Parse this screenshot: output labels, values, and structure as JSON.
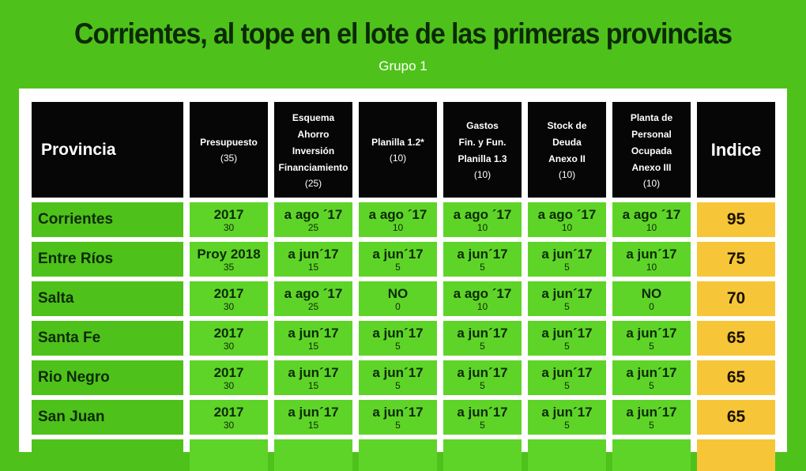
{
  "title": "Corrientes, al tope en el lote de las primeras provincias",
  "subtitle": "Grupo 1",
  "columns": [
    {
      "label": "Provincia",
      "weight": ""
    },
    {
      "label": "Presupuesto",
      "weight": "(35)"
    },
    {
      "label": "Esquema\nAhorro\nInversión\nFinanciamiento",
      "weight": "(25)"
    },
    {
      "label": "Planilla 1.2*",
      "weight": "(10)"
    },
    {
      "label": "Gastos\nFin. y Fun.\nPlanilla 1.3",
      "weight": "(10)"
    },
    {
      "label": "Stock de\nDeuda\nAnexo II",
      "weight": "(10)"
    },
    {
      "label": "Planta de\nPersonal\nOcupada\nAnexo III",
      "weight": "(10)"
    },
    {
      "label": "Indice",
      "weight": ""
    }
  ],
  "rows": [
    {
      "provincia": "Corrientes",
      "cells": [
        {
          "v": "2017",
          "n": "30"
        },
        {
          "v": "a ago ´17",
          "n": "25"
        },
        {
          "v": "a ago ´17",
          "n": "10"
        },
        {
          "v": "a ago ´17",
          "n": "10"
        },
        {
          "v": "a ago ´17",
          "n": "10"
        },
        {
          "v": "a ago ´17",
          "n": "10"
        }
      ],
      "indice": "95"
    },
    {
      "provincia": "Entre Ríos",
      "cells": [
        {
          "v": "Proy 2018",
          "n": "35"
        },
        {
          "v": "a jun´17",
          "n": "15"
        },
        {
          "v": "a jun´17",
          "n": "5"
        },
        {
          "v": "a jun´17",
          "n": "5"
        },
        {
          "v": "a jun´17",
          "n": "5"
        },
        {
          "v": "a jun´17",
          "n": "10"
        }
      ],
      "indice": "75"
    },
    {
      "provincia": "Salta",
      "cells": [
        {
          "v": "2017",
          "n": "30"
        },
        {
          "v": "a ago ´17",
          "n": "25"
        },
        {
          "v": "NO",
          "n": "0"
        },
        {
          "v": "a ago ´17",
          "n": "10"
        },
        {
          "v": "a jun´17",
          "n": "5"
        },
        {
          "v": "NO",
          "n": "0"
        }
      ],
      "indice": "70"
    },
    {
      "provincia": "Santa Fe",
      "cells": [
        {
          "v": "2017",
          "n": "30"
        },
        {
          "v": "a jun´17",
          "n": "15"
        },
        {
          "v": "a jun´17",
          "n": "5"
        },
        {
          "v": "a jun´17",
          "n": "5"
        },
        {
          "v": "a jun´17",
          "n": "5"
        },
        {
          "v": "a jun´17",
          "n": "5"
        }
      ],
      "indice": "65"
    },
    {
      "provincia": "Rio Negro",
      "cells": [
        {
          "v": "2017",
          "n": "30"
        },
        {
          "v": "a jun´17",
          "n": "15"
        },
        {
          "v": "a jun´17",
          "n": "5"
        },
        {
          "v": "a jun´17",
          "n": "5"
        },
        {
          "v": "a jun´17",
          "n": "5"
        },
        {
          "v": "a jun´17",
          "n": "5"
        }
      ],
      "indice": "65"
    },
    {
      "provincia": "San Juan",
      "cells": [
        {
          "v": "2017",
          "n": "30"
        },
        {
          "v": "a jun´17",
          "n": "15"
        },
        {
          "v": "a jun´17",
          "n": "5"
        },
        {
          "v": "a jun´17",
          "n": "5"
        },
        {
          "v": "a jun´17",
          "n": "5"
        },
        {
          "v": "a jun´17",
          "n": "5"
        }
      ],
      "indice": "65"
    }
  ],
  "colors": {
    "background": "#4ec21b",
    "header": "#060606",
    "value_cell": "#5fd428",
    "index_cell": "#f6c638",
    "title": "#0c2a05"
  }
}
